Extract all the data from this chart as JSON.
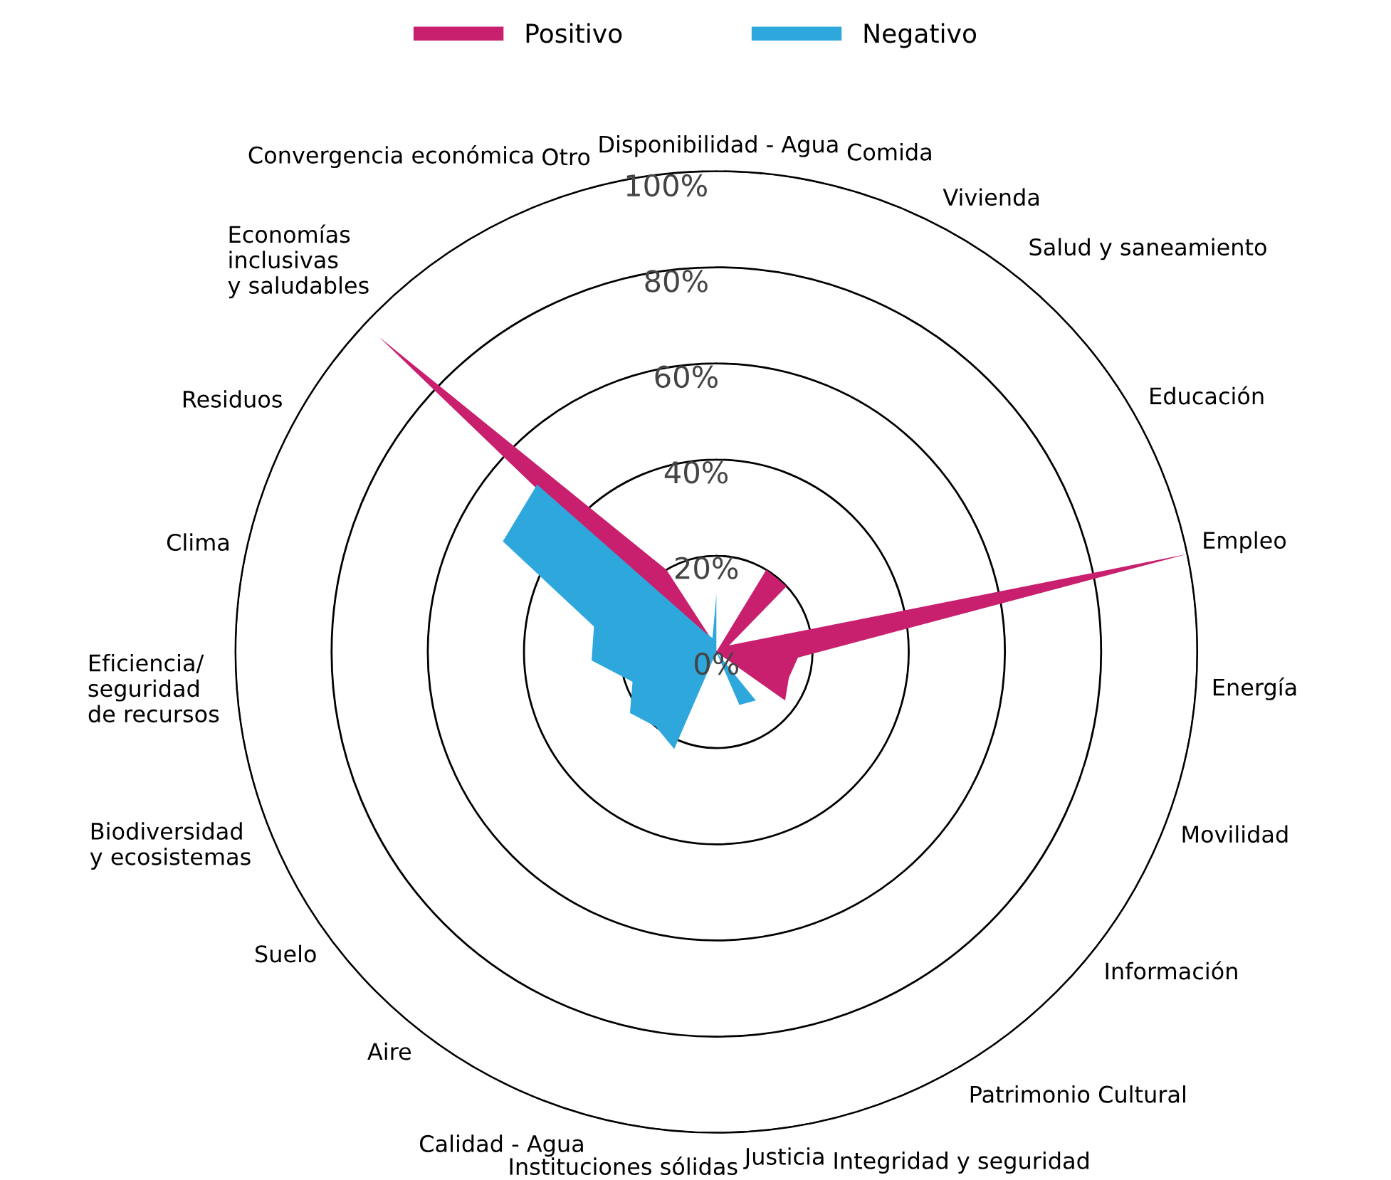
{
  "chart_data": {
    "type": "radar",
    "categories": [
      "Disponibilidad - Agua",
      "Comida",
      "Vivienda",
      "Salud y saneamiento",
      "Educación",
      "Empleo",
      "Energía",
      "Movilidad",
      "Información",
      "Patrimonio Cultural",
      "Integridad y seguridad",
      "Justicia",
      "Instituciones sólidas",
      "Calidad - Agua",
      "Aire",
      "Suelo",
      "Biodiversidad\ny ecosistemas",
      "Eficiencia/\nseguridad\nde recursos",
      "Clima",
      "Residuos",
      "Economías\ninclusivas\ny saludables",
      "Convergencia económica",
      "Otro"
    ],
    "series": [
      {
        "name": "Positivo",
        "color": "#c8206e",
        "values": [
          0,
          0,
          20,
          20,
          3,
          100,
          17,
          16,
          17.5,
          0,
          0,
          0,
          0,
          0,
          0,
          0,
          0,
          0,
          0,
          5,
          96,
          20,
          2
        ]
      },
      {
        "name": "Negativo",
        "color": "#2ea8dc",
        "values": [
          12,
          0,
          0,
          20,
          0,
          48,
          0,
          0,
          0,
          13,
          12,
          0,
          0,
          22,
          20,
          22,
          18.5,
          26,
          26,
          50,
          51,
          5,
          3
        ]
      }
    ],
    "ylim": [
      0,
      100
    ],
    "yticks": [
      {
        "value": 0,
        "label": "0%"
      },
      {
        "value": 20,
        "label": "20%"
      },
      {
        "value": 40,
        "label": "40%"
      },
      {
        "value": 60,
        "label": "60%"
      },
      {
        "value": 80,
        "label": "80%"
      },
      {
        "value": 100,
        "label": "100%"
      }
    ],
    "grid": "y",
    "legend": "top"
  }
}
